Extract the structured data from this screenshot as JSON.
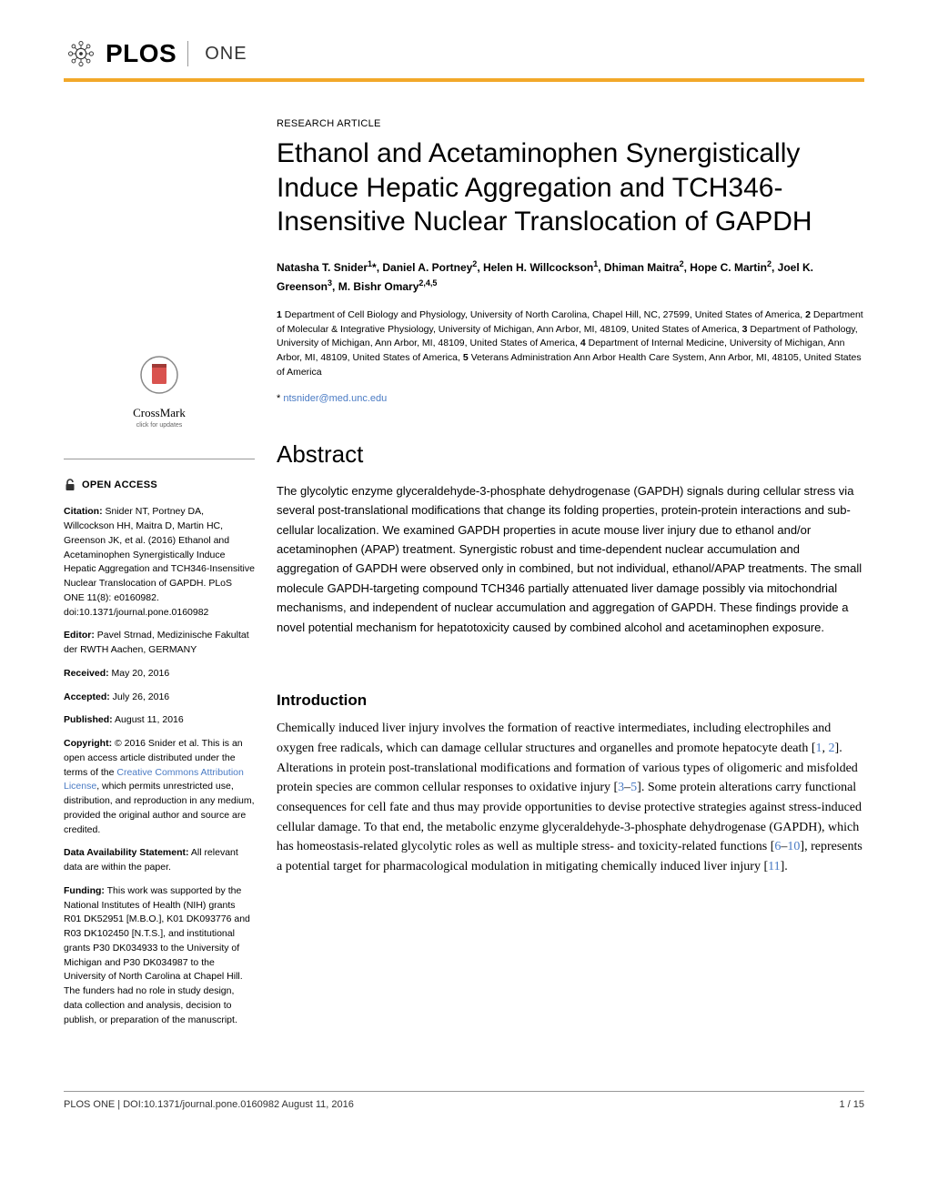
{
  "journal": {
    "name": "PLOS",
    "sub": "ONE"
  },
  "article": {
    "type": "RESEARCH ARTICLE",
    "title": "Ethanol and Acetaminophen Synergistically Induce Hepatic Aggregation and TCH346-Insensitive Nuclear Translocation of GAPDH",
    "authors_html": "Natasha T. Snider<sup>1</sup>*, Daniel A. Portney<sup>2</sup>, Helen H. Willcockson<sup>1</sup>, Dhiman Maitra<sup>2</sup>, Hope C. Martin<sup>2</sup>, Joel K. Greenson<sup>3</sup>, M. Bishr Omary<sup>2,4,5</sup>",
    "affiliations": "1 Department of Cell Biology and Physiology, University of North Carolina, Chapel Hill, NC, 27599, United States of America, 2 Department of Molecular & Integrative Physiology, University of Michigan, Ann Arbor, MI, 48109, United States of America, 3 Department of Pathology, University of Michigan, Ann Arbor, MI, 48109, United States of America, 4 Department of Internal Medicine, University of Michigan, Ann Arbor, MI, 48109, United States of America, 5 Veterans Administration Ann Arbor Health Care System, Ann Arbor, MI, 48105, United States of America",
    "corresponding_prefix": "* ",
    "corresponding_email": "ntsnider@med.unc.edu"
  },
  "abstract": {
    "heading": "Abstract",
    "body": "The glycolytic enzyme glyceraldehyde-3-phosphate dehydrogenase (GAPDH) signals during cellular stress via several post-translational modifications that change its folding properties, protein-protein interactions and sub-cellular localization. We examined GAPDH properties in acute mouse liver injury due to ethanol and/or acetaminophen (APAP) treatment. Synergistic robust and time-dependent nuclear accumulation and aggregation of GAPDH were observed only in combined, but not individual, ethanol/APAP treatments. The small molecule GAPDH-targeting compound TCH346 partially attenuated liver damage possibly via mitochondrial mechanisms, and independent of nuclear accumulation and aggregation of GAPDH. These findings provide a novel potential mechanism for hepatotoxicity caused by combined alcohol and acetaminophen exposure."
  },
  "introduction": {
    "heading": "Introduction",
    "body_html": "Chemically induced liver injury involves the formation of reactive intermediates, including electrophiles and oxygen free radicals, which can damage cellular structures and organelles and promote hepatocyte death [<span class='link'>1</span>, <span class='link'>2</span>]. Alterations in protein post-translational modifications and formation of various types of oligomeric and misfolded protein species are common cellular responses to oxidative injury [<span class='link'>3</span>–<span class='link'>5</span>]. Some protein alterations carry functional consequences for cell fate and thus may provide opportunities to devise protective strategies against stress-induced cellular damage. To that end, the metabolic enzyme glyceraldehyde-3-phosphate dehydrogenase (GAPDH), which has homeostasis-related glycolytic roles as well as multiple stress- and toxicity-related functions [<span class='link'>6</span>–<span class='link'>10</span>], represents a potential target for pharmacological modulation in mitigating chemically induced liver injury [<span class='link'>11</span>]."
  },
  "sidebar": {
    "crossmark": {
      "label": "CrossMark",
      "sub": "click for updates"
    },
    "open_access": "OPEN ACCESS",
    "citation_label": "Citation:",
    "citation": " Snider NT, Portney DA, Willcockson HH, Maitra D, Martin HC, Greenson JK, et al. (2016) Ethanol and Acetaminophen Synergistically Induce Hepatic Aggregation and TCH346-Insensitive Nuclear Translocation of GAPDH. PLoS ONE 11(8): e0160982. doi:10.1371/journal.pone.0160982",
    "editor_label": "Editor:",
    "editor": " Pavel Strnad, Medizinische Fakultat der RWTH Aachen, GERMANY",
    "received_label": "Received:",
    "received": " May 20, 2016",
    "accepted_label": "Accepted:",
    "accepted": " July 26, 2016",
    "published_label": "Published:",
    "published": " August 11, 2016",
    "copyright_label": "Copyright:",
    "copyright_pre": " © 2016 Snider et al. This is an open access article distributed under the terms of the ",
    "copyright_link": "Creative Commons Attribution License",
    "copyright_post": ", which permits unrestricted use, distribution, and reproduction in any medium, provided the original author and source are credited.",
    "data_label": "Data Availability Statement:",
    "data": " All relevant data are within the paper.",
    "funding_label": "Funding:",
    "funding": " This work was supported by the National Institutes of Health (NIH) grants R01 DK52951 [M.B.O.], K01 DK093776 and R03 DK102450 [N.T.S.], and institutional grants P30 DK034933 to the University of Michigan and P30 DK034987 to the University of North Carolina at Chapel Hill. The funders had no role in study design, data collection and analysis, decision to publish, or preparation of the manuscript."
  },
  "footer": {
    "left": "PLOS ONE | DOI:10.1371/journal.pone.0160982    August 11, 2016",
    "right": "1 / 15"
  },
  "colors": {
    "accent": "#f2a829",
    "link": "#4a7bc4",
    "text": "#000000",
    "muted": "#666666"
  }
}
